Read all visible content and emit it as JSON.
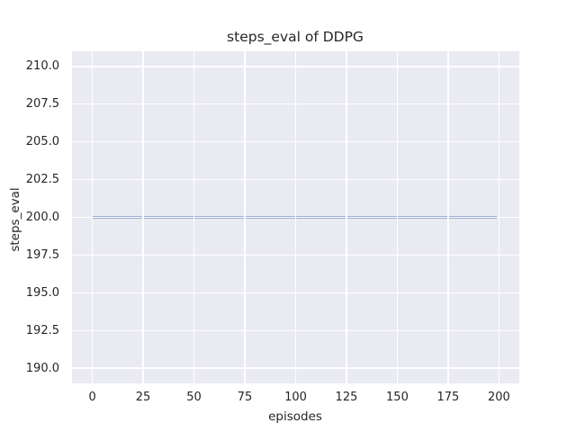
{
  "chart_data": {
    "type": "line",
    "title": "steps_eval of DDPG",
    "xlabel": "episodes",
    "ylabel": "steps_eval",
    "x_ticks": [
      0,
      25,
      50,
      75,
      100,
      125,
      150,
      175,
      200
    ],
    "x_tick_labels": [
      "0",
      "25",
      "50",
      "75",
      "100",
      "125",
      "150",
      "175",
      "200"
    ],
    "y_ticks": [
      190.0,
      192.5,
      195.0,
      197.5,
      200.0,
      202.5,
      205.0,
      207.5,
      210.0
    ],
    "y_tick_labels": [
      "190.0",
      "192.5",
      "195.0",
      "197.5",
      "200.0",
      "202.5",
      "205.0",
      "207.5",
      "210.0"
    ],
    "xlim": [
      -10,
      210
    ],
    "ylim": [
      189,
      211
    ],
    "grid": true,
    "legend": false,
    "style": "seaborn-darkgrid",
    "plot_background_color": "#EAEAF2",
    "grid_color": "#FFFFFF",
    "text_color": "#262626",
    "series": [
      {
        "name": "steps_eval",
        "color": "#4C72B0",
        "line_width": 2,
        "points": [
          [
            0,
            200
          ],
          [
            199,
            200
          ]
        ],
        "description": "constant value 200 across episodes 0 to 199"
      }
    ]
  }
}
